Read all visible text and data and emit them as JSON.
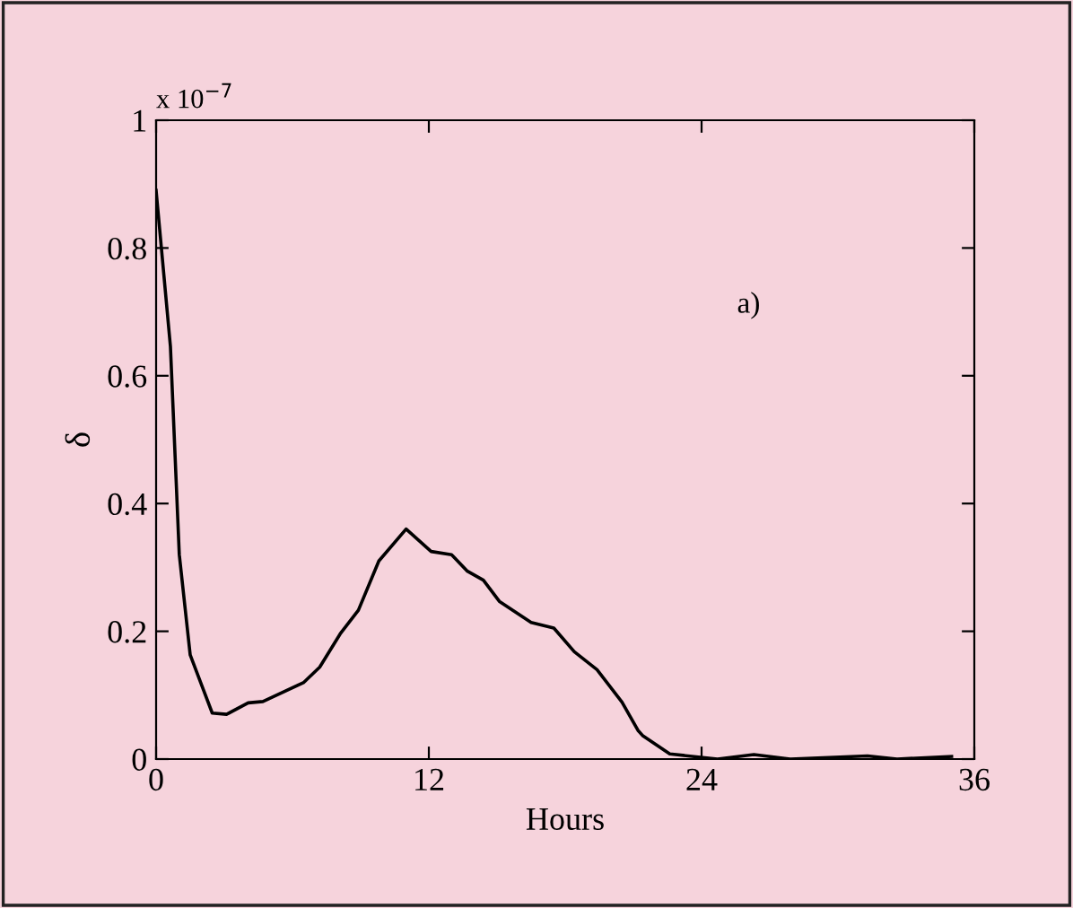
{
  "chart_data": {
    "type": "line",
    "xlabel": "Hours",
    "ylabel": "δ",
    "annotations": [
      "x 10$^{−7}$",
      "a)"
    ],
    "xlim": [
      0,
      36
    ],
    "xticks": [
      0,
      12,
      24,
      36
    ],
    "ylim": [
      0,
      1
    ],
    "yticks": [
      0,
      0.2,
      0.4,
      0.6,
      0.8,
      1
    ],
    "grid": false,
    "legend": false,
    "marker": "none",
    "line_style": "solid",
    "series": [
      {
        "color": "#000000",
        "x": [
          0,
          0.63,
          1.02,
          1.5,
          2.47,
          3.1,
          4.05,
          4.7,
          6.5,
          7.2,
          8.1,
          8.9,
          9.8,
          11.0,
          12.1,
          13.0,
          13.7,
          14.4,
          15.1,
          16.5,
          17.5,
          18.4,
          19.4,
          20.5,
          21.2,
          21.4,
          22.6,
          24.7,
          26.3,
          27.9,
          31.3,
          32.6,
          35.0
        ],
        "values": [
          0.89,
          0.646,
          0.32,
          0.163,
          0.072,
          0.07,
          0.088,
          0.09,
          0.12,
          0.144,
          0.196,
          0.233,
          0.31,
          0.36,
          0.325,
          0.32,
          0.294,
          0.28,
          0.247,
          0.214,
          0.205,
          0.168,
          0.14,
          0.089,
          0.045,
          0.037,
          0.008,
          0.0,
          0.007,
          0.0,
          0.005,
          0.0,
          0.004
        ]
      }
    ]
  }
}
